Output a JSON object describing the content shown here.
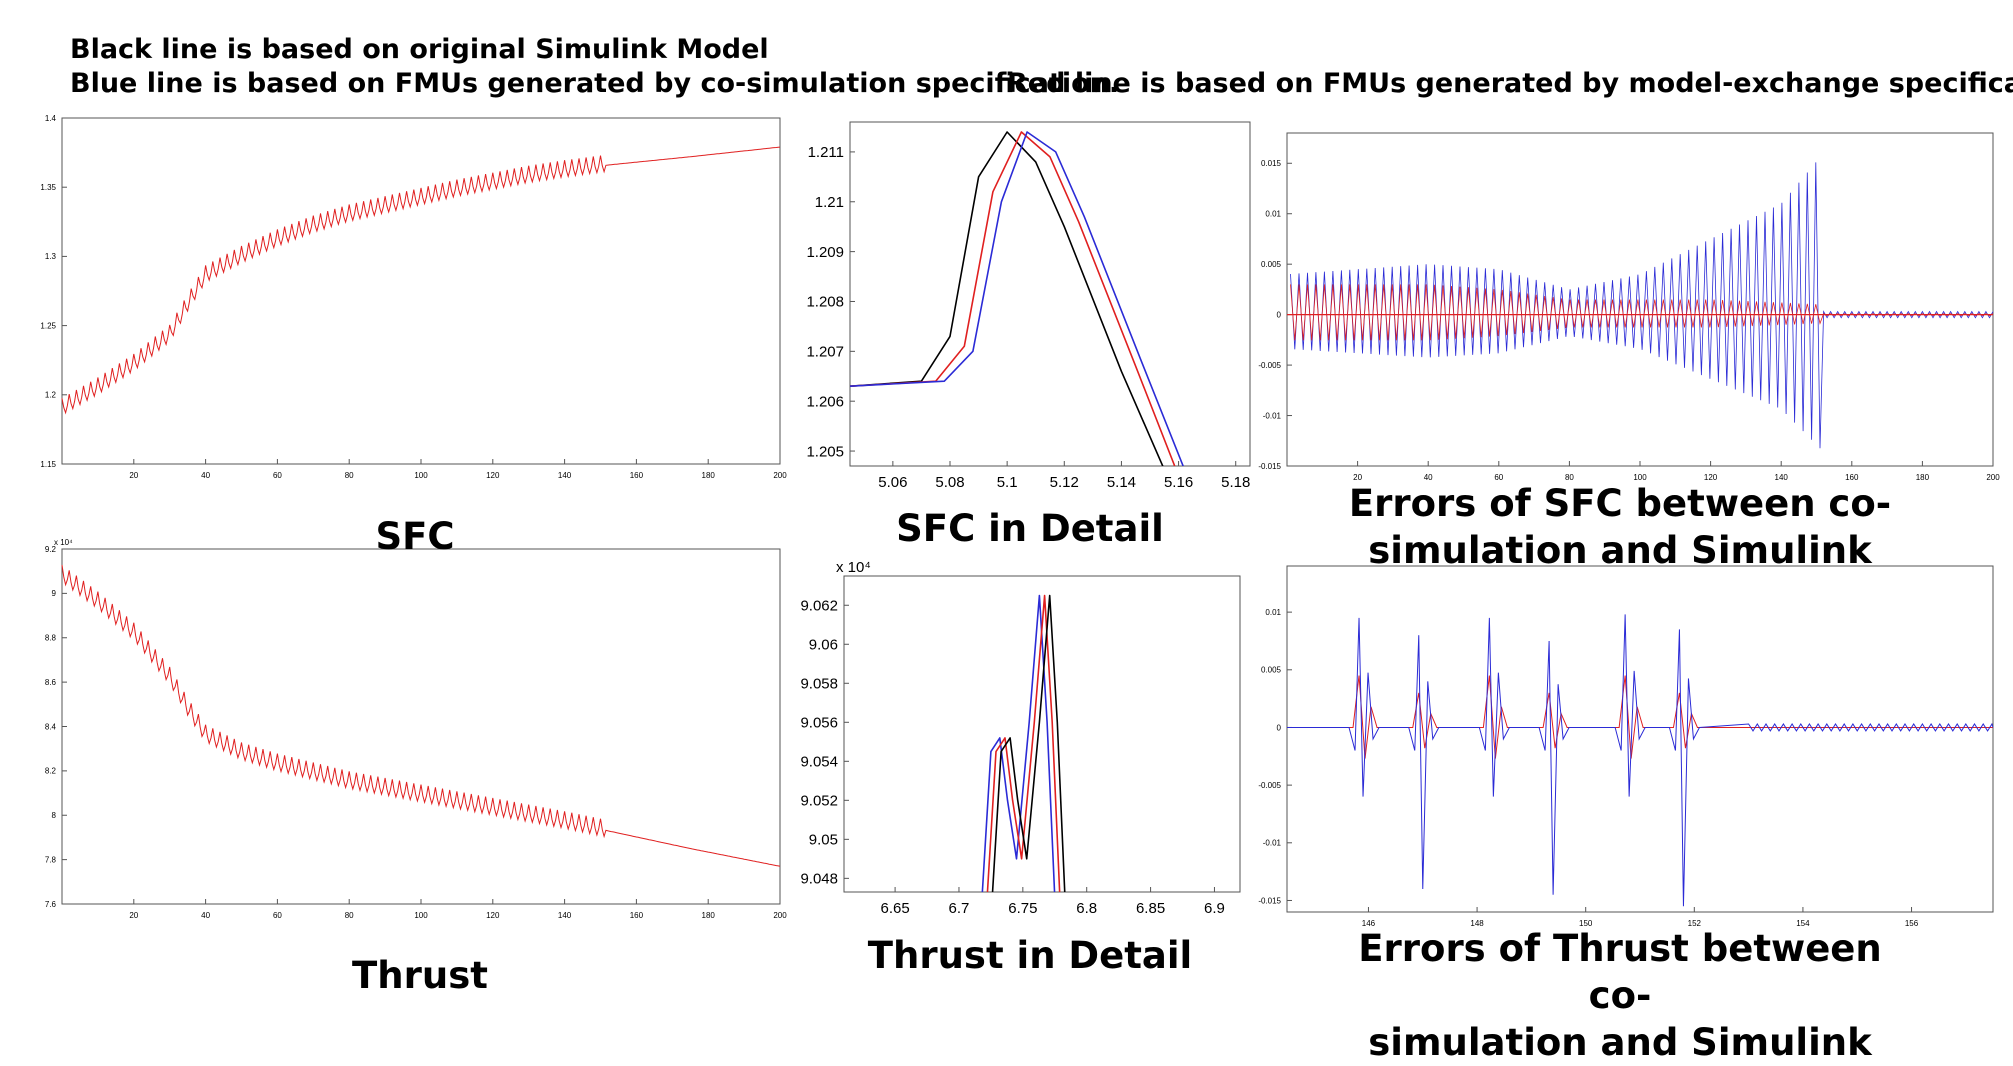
{
  "header": {
    "line1": "Black line is based on original Simulink Model",
    "line2": "Blue line is  based on FMUs generated by co-simulation specification.",
    "line3": "Red line is based on FMUs generated by model-exchange specification"
  },
  "colors": {
    "black_series": "#000000",
    "blue_series": "#2b2bd6",
    "red_series": "#e02020"
  },
  "chart_data": [
    {
      "id": "sfc",
      "type": "line",
      "title": "SFC",
      "xlim": [
        0,
        200
      ],
      "ylim": [
        1.15,
        1.4
      ],
      "x_ticks": [
        "20",
        "40",
        "60",
        "80",
        "100",
        "120",
        "140",
        "160",
        "180",
        "200"
      ],
      "y_ticks": [
        "1.4",
        "1.35",
        "1.3",
        "1.25",
        "1.2",
        "1.15"
      ],
      "exponent_label": "",
      "series": [
        {
          "color": "red_series",
          "x": [
            0,
            10,
            20,
            30,
            35,
            40,
            50,
            60,
            70,
            80,
            90,
            100,
            110,
            120,
            130,
            140,
            152,
            175,
            200
          ],
          "values": [
            1.19,
            1.205,
            1.222,
            1.243,
            1.265,
            1.286,
            1.3,
            1.312,
            1.322,
            1.33,
            1.336,
            1.342,
            1.348,
            1.353,
            1.358,
            1.362,
            1.366,
            1.372,
            1.379
          ]
        }
      ]
    },
    {
      "id": "sfc-detail",
      "type": "line",
      "title": "SFC in Detail",
      "xlim": [
        5.045,
        5.185
      ],
      "ylim": [
        1.2047,
        1.2116
      ],
      "x_ticks": [
        "5.06",
        "5.08",
        "5.1",
        "5.12",
        "5.14",
        "5.16",
        "5.18"
      ],
      "y_ticks": [
        "1.211",
        "1.21",
        "1.209",
        "1.208",
        "1.207",
        "1.206",
        "1.205"
      ],
      "exponent_label": "",
      "series": [
        {
          "color": "black_series",
          "x": [
            5.045,
            5.07,
            5.08,
            5.09,
            5.1,
            5.11,
            5.12,
            5.14,
            5.156
          ],
          "values": [
            1.2063,
            1.2064,
            1.2073,
            1.2105,
            1.2114,
            1.2108,
            1.2095,
            1.2066,
            1.2045
          ]
        },
        {
          "color": "red_series",
          "x": [
            5.045,
            5.075,
            5.085,
            5.095,
            5.105,
            5.115,
            5.125,
            5.145,
            5.16
          ],
          "values": [
            1.2063,
            1.2064,
            1.2071,
            1.2102,
            1.2114,
            1.2109,
            1.2096,
            1.2067,
            1.2045
          ]
        },
        {
          "color": "blue_series",
          "x": [
            5.045,
            5.078,
            5.088,
            5.098,
            5.107,
            5.117,
            5.127,
            5.147,
            5.163
          ],
          "values": [
            1.2063,
            1.2064,
            1.207,
            1.21,
            1.2114,
            1.211,
            1.2097,
            1.2068,
            1.2045
          ]
        }
      ]
    },
    {
      "id": "sfc-error",
      "type": "line",
      "title": "Errors of SFC between co-\nsimulation and Simulink",
      "xlim": [
        0,
        200
      ],
      "ylim": [
        -0.015,
        0.018
      ],
      "x_ticks": [
        "20",
        "40",
        "60",
        "80",
        "100",
        "120",
        "140",
        "160",
        "180",
        "200"
      ],
      "y_ticks": [
        "0.015",
        "0.01",
        "0.005",
        "0",
        "-0.005",
        "-0.01",
        "-0.015"
      ],
      "exponent_label": "",
      "envelope": {
        "x": [
          0,
          20,
          40,
          60,
          70,
          80,
          100,
          120,
          140,
          152
        ],
        "blue": [
          0.004,
          0.0045,
          0.005,
          0.0045,
          0.0035,
          0.0025,
          0.004,
          0.0075,
          0.011,
          0.016
        ],
        "red": [
          0.003,
          0.003,
          0.003,
          0.0025,
          0.002,
          0.0015,
          0.0015,
          0.0015,
          0.0012,
          0.001
        ]
      },
      "tail_amplitude": 0.0003
    },
    {
      "id": "thrust",
      "type": "line",
      "title": "Thrust",
      "xlim": [
        0,
        200
      ],
      "ylim": [
        76000,
        92000
      ],
      "x_ticks": [
        "20",
        "40",
        "60",
        "80",
        "100",
        "120",
        "140",
        "160",
        "180",
        "200"
      ],
      "y_ticks": [
        "9.2",
        "9",
        "8.8",
        "8.6",
        "8.4",
        "8.2",
        "8",
        "7.8",
        "7.6"
      ],
      "exponent_label": "x 10⁴",
      "series": [
        {
          "color": "red_series",
          "x": [
            0,
            10,
            20,
            30,
            35,
            40,
            50,
            60,
            70,
            80,
            90,
            100,
            110,
            120,
            130,
            140,
            152,
            175,
            200
          ],
          "values": [
            90800,
            89600,
            88200,
            86200,
            84800,
            83600,
            82800,
            82300,
            81900,
            81500,
            81200,
            80900,
            80600,
            80300,
            80000,
            79700,
            79300,
            78500,
            77700
          ]
        }
      ]
    },
    {
      "id": "thrust-detail",
      "type": "line",
      "title": "Thrust in Detail",
      "xlim": [
        6.61,
        6.92
      ],
      "ylim": [
        90473,
        90635
      ],
      "x_ticks": [
        "6.65",
        "6.7",
        "6.75",
        "6.8",
        "6.85",
        "6.9"
      ],
      "y_ticks": [
        "9.062",
        "9.06",
        "9.058",
        "9.056",
        "9.054",
        "9.052",
        "9.05",
        "9.048"
      ],
      "exponent_label": "x 10⁴",
      "series": [
        {
          "color": "blue_series",
          "x": [
            6.718,
            6.725,
            6.732,
            6.738,
            6.745,
            6.755,
            6.763,
            6.769,
            6.775
          ],
          "values": [
            90470,
            90545,
            90552,
            90520,
            90490,
            90560,
            90625,
            90560,
            90470
          ]
        },
        {
          "color": "red_series",
          "x": [
            6.722,
            6.729,
            6.736,
            6.742,
            6.749,
            6.759,
            6.767,
            6.773,
            6.779
          ],
          "values": [
            90470,
            90545,
            90552,
            90520,
            90490,
            90560,
            90625,
            90560,
            90470
          ]
        },
        {
          "color": "black_series",
          "x": [
            6.726,
            6.733,
            6.74,
            6.746,
            6.753,
            6.763,
            6.771,
            6.777,
            6.783
          ],
          "values": [
            90470,
            90545,
            90552,
            90520,
            90490,
            90560,
            90625,
            90560,
            90470
          ]
        }
      ]
    },
    {
      "id": "thrust-error",
      "type": "line",
      "title": "Errors of Thrust between co-\nsimulation and Simulink",
      "xlim": [
        144.5,
        157.5
      ],
      "ylim": [
        -0.016,
        0.014
      ],
      "x_ticks": [
        "146",
        "148",
        "150",
        "152",
        "154",
        "156"
      ],
      "y_ticks": [
        "0.01",
        "0.005",
        "0",
        "-0.005",
        "-0.01",
        "-0.015"
      ],
      "exponent_label": "",
      "spikes": [
        {
          "x": 145.9,
          "blue_up": 0.0095,
          "blue_down": -0.006,
          "red": 0.0045
        },
        {
          "x": 147.0,
          "blue_up": 0.008,
          "blue_down": -0.014,
          "red": 0.003
        },
        {
          "x": 148.3,
          "blue_up": 0.0095,
          "blue_down": -0.006,
          "red": 0.0045
        },
        {
          "x": 149.4,
          "blue_up": 0.0075,
          "blue_down": -0.0145,
          "red": 0.003
        },
        {
          "x": 150.8,
          "blue_up": 0.0098,
          "blue_down": -0.006,
          "red": 0.0045
        },
        {
          "x": 151.8,
          "blue_up": 0.0085,
          "blue_down": -0.0155,
          "red": 0.003
        }
      ],
      "tail_from": 153.0,
      "tail_amplitude": 0.0003
    }
  ]
}
